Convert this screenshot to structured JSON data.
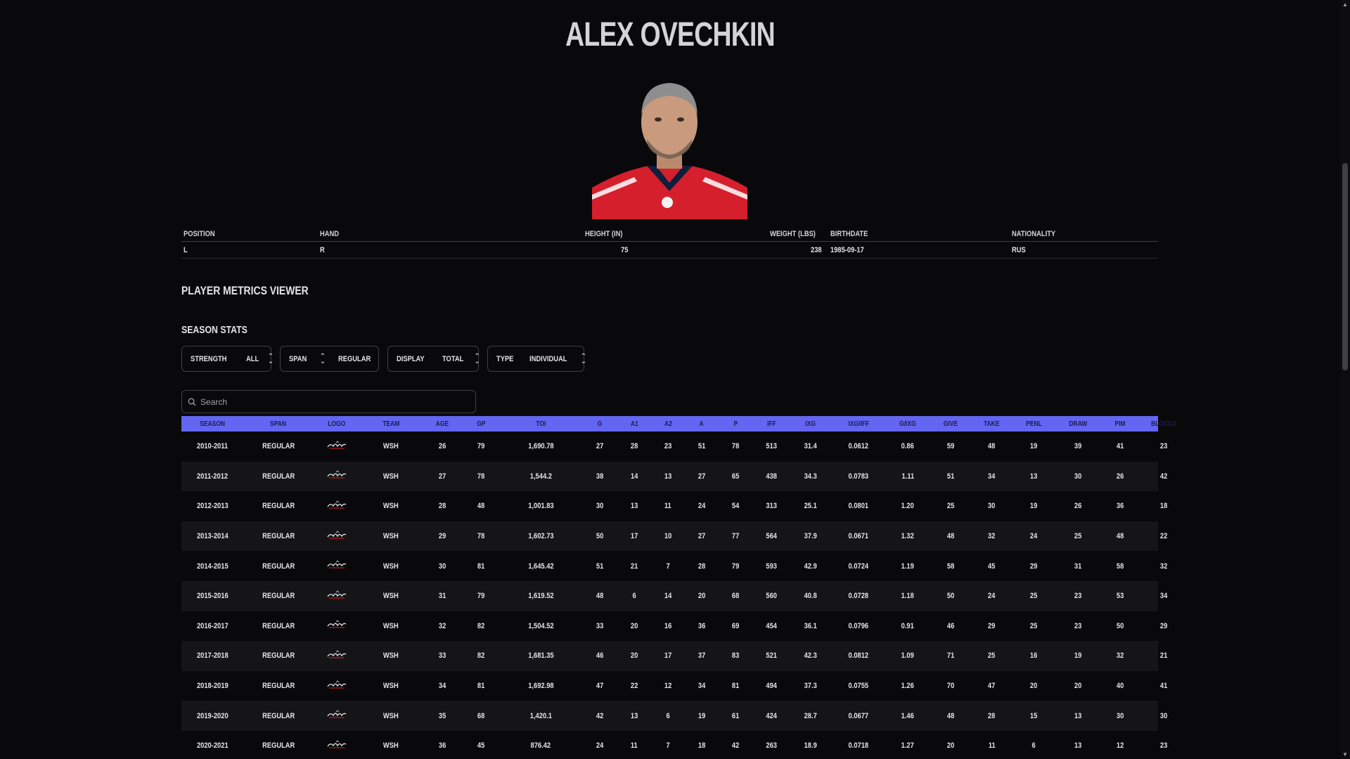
{
  "player": {
    "name": "ALEX OVECHKIN",
    "info_headers": [
      "POSITION",
      "HAND",
      "HEIGHT (IN)",
      "WEIGHT (LBS)",
      "BIRTHDATE",
      "NATIONALITY"
    ],
    "info_values": [
      "L",
      "R",
      "75",
      "238",
      "1985-09-17",
      "RUS"
    ]
  },
  "sections": {
    "viewer_title": "PLAYER METRICS VIEWER",
    "season_stats_title": "SEASON STATS"
  },
  "filters": [
    {
      "label": "STRENGTH",
      "value": "ALL"
    },
    {
      "label": "SPAN",
      "value": "REGULAR"
    },
    {
      "label": "DISPLAY",
      "value": "TOTAL"
    },
    {
      "label": "TYPE",
      "value": "INDIVIDUAL"
    }
  ],
  "search": {
    "placeholder": "Search",
    "value": ""
  },
  "colors": {
    "accent": "#6366f1",
    "background": "#09090b",
    "jersey_red": "#d61f2c",
    "jersey_navy": "#0f1e3c"
  },
  "table": {
    "columns": [
      "SEASON",
      "SPAN",
      "LOGO",
      "TEAM",
      "AGE",
      "GP",
      "TOI",
      "G",
      "A1",
      "A2",
      "A",
      "P",
      "IFF",
      "IXG",
      "IXG/IFF",
      "G/IXG",
      "GIVE",
      "TAKE",
      "PENL",
      "DRAW",
      "PIM",
      "BLOCKS"
    ],
    "rows": [
      [
        "2010-2011",
        "REGULAR",
        "",
        "WSH",
        "26",
        "79",
        "1,690.78",
        "27",
        "28",
        "23",
        "51",
        "78",
        "513",
        "31.4",
        "0.0612",
        "0.86",
        "59",
        "48",
        "19",
        "39",
        "41",
        "23"
      ],
      [
        "2011-2012",
        "REGULAR",
        "",
        "WSH",
        "27",
        "78",
        "1,544.2",
        "38",
        "14",
        "13",
        "27",
        "65",
        "438",
        "34.3",
        "0.0783",
        "1.11",
        "51",
        "34",
        "13",
        "30",
        "26",
        "42"
      ],
      [
        "2012-2013",
        "REGULAR",
        "",
        "WSH",
        "28",
        "48",
        "1,001.83",
        "30",
        "13",
        "11",
        "24",
        "54",
        "313",
        "25.1",
        "0.0801",
        "1.20",
        "25",
        "30",
        "19",
        "26",
        "36",
        "18"
      ],
      [
        "2013-2014",
        "REGULAR",
        "",
        "WSH",
        "29",
        "78",
        "1,602.73",
        "50",
        "17",
        "10",
        "27",
        "77",
        "564",
        "37.9",
        "0.0671",
        "1.32",
        "48",
        "32",
        "24",
        "25",
        "48",
        "22"
      ],
      [
        "2014-2015",
        "REGULAR",
        "",
        "WSH",
        "30",
        "81",
        "1,645.42",
        "51",
        "21",
        "7",
        "28",
        "79",
        "593",
        "42.9",
        "0.0724",
        "1.19",
        "58",
        "45",
        "29",
        "31",
        "58",
        "32"
      ],
      [
        "2015-2016",
        "REGULAR",
        "",
        "WSH",
        "31",
        "79",
        "1,619.52",
        "48",
        "6",
        "14",
        "20",
        "68",
        "560",
        "40.8",
        "0.0728",
        "1.18",
        "50",
        "24",
        "25",
        "23",
        "53",
        "34"
      ],
      [
        "2016-2017",
        "REGULAR",
        "",
        "WSH",
        "32",
        "82",
        "1,504.52",
        "33",
        "20",
        "16",
        "36",
        "69",
        "454",
        "36.1",
        "0.0796",
        "0.91",
        "46",
        "29",
        "25",
        "23",
        "50",
        "29"
      ],
      [
        "2017-2018",
        "REGULAR",
        "",
        "WSH",
        "33",
        "82",
        "1,681.35",
        "46",
        "20",
        "17",
        "37",
        "83",
        "521",
        "42.3",
        "0.0812",
        "1.09",
        "71",
        "25",
        "16",
        "19",
        "32",
        "21"
      ],
      [
        "2018-2019",
        "REGULAR",
        "",
        "WSH",
        "34",
        "81",
        "1,692.98",
        "47",
        "22",
        "12",
        "34",
        "81",
        "494",
        "37.3",
        "0.0755",
        "1.26",
        "70",
        "47",
        "20",
        "20",
        "40",
        "41"
      ],
      [
        "2019-2020",
        "REGULAR",
        "",
        "WSH",
        "35",
        "68",
        "1,420.1",
        "42",
        "13",
        "6",
        "19",
        "61",
        "424",
        "28.7",
        "0.0677",
        "1.46",
        "48",
        "28",
        "15",
        "13",
        "30",
        "30"
      ],
      [
        "2020-2021",
        "REGULAR",
        "",
        "WSH",
        "36",
        "45",
        "876.42",
        "24",
        "11",
        "7",
        "18",
        "42",
        "263",
        "18.9",
        "0.0718",
        "1.27",
        "20",
        "11",
        "6",
        "13",
        "12",
        "23"
      ]
    ]
  },
  "icons": {
    "search": "search-icon",
    "chevron": "chevron-up-down-icon",
    "team_logo": "capitals-logo-icon"
  }
}
